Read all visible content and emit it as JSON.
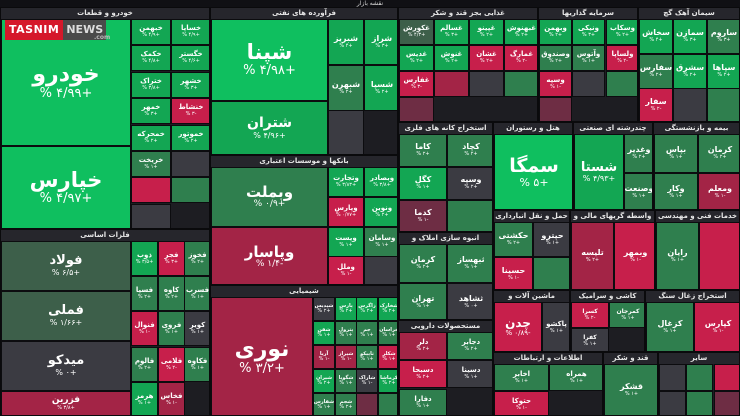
{
  "map_title": "نقشه بازار",
  "logo": {
    "brand": "TASNIM",
    "news": "NEWS",
    "domain": ".com"
  },
  "sectors": [
    {
      "id": "auto",
      "title": "خودرو و قطعات",
      "tiles": [
        {
          "n": "خودرو",
          "p": "+۴/۹۹ %",
          "c": "g1",
          "big": 3
        },
        {
          "n": "خپارس",
          "p": "+۴/۹۷ %",
          "c": "g1",
          "big": 2
        },
        {
          "n": "خبهمن",
          "p": "+۴/۹ %",
          "c": "g2"
        },
        {
          "n": "خساپا",
          "p": "+۴/۹ %",
          "c": "g2"
        },
        {
          "n": "خکمک",
          "p": "+۴/۸ %",
          "c": "g2"
        },
        {
          "n": "خگستر",
          "p": "+۴/۶ %",
          "c": "g2"
        },
        {
          "n": "ختراک",
          "p": "+۳/۸ %",
          "c": "g2"
        },
        {
          "n": "خشهر",
          "p": "+۳ %",
          "c": "g2"
        },
        {
          "n": "خمهر",
          "p": "+۳ %",
          "c": "g2"
        },
        {
          "n": "خنشاط",
          "p": "-۳ %",
          "c": "r1"
        },
        {
          "n": "خمحرکه",
          "p": "+۲ %",
          "c": "g2"
        },
        {
          "n": "خموتور",
          "p": "+۲ %",
          "c": "g2"
        },
        {
          "n": "خریخت",
          "p": "+۱ %",
          "c": "g3"
        },
        {
          "n": "",
          "p": "",
          "c": "nn"
        },
        {
          "n": "",
          "p": "",
          "c": "r1"
        },
        {
          "n": "",
          "p": "",
          "c": "g3"
        },
        {
          "n": "",
          "p": "",
          "c": "nn"
        }
      ]
    },
    {
      "id": "oil",
      "title": "فرآورده های نفتی",
      "tiles": [
        {
          "n": "شپنا",
          "p": "+۴/۹۸ %",
          "c": "g1",
          "big": 3
        },
        {
          "n": "شتران",
          "p": "+۴/۹۶ %",
          "c": "g2",
          "big": 2
        },
        {
          "n": "شبریز",
          "p": "+۴ %",
          "c": "g2"
        },
        {
          "n": "شراز",
          "p": "+۳ %",
          "c": "g2"
        },
        {
          "n": "شبهرن",
          "p": "+۲ %",
          "c": "g3"
        },
        {
          "n": "شسپا",
          "p": "+۲ %",
          "c": "g2"
        },
        {
          "n": "",
          "p": "",
          "c": "nn"
        }
      ]
    },
    {
      "id": "food",
      "title": "غذایی بجز قند و شکر",
      "tiles": [
        {
          "n": "غکورش",
          "p": "+۴/۳ %",
          "c": "g4"
        },
        {
          "n": "غسالم",
          "p": "+۳ %",
          "c": "g2"
        },
        {
          "n": "غپینو",
          "p": "+۲ %",
          "c": "g2"
        },
        {
          "n": "غبهنوش",
          "p": "+۲ %",
          "c": "g2"
        },
        {
          "n": "غدیس",
          "p": "+۲ %",
          "c": "g2"
        },
        {
          "n": "غنوش",
          "p": "+۲ %",
          "c": "g2"
        },
        {
          "n": "غشان",
          "p": "+۲ %",
          "c": "r1"
        },
        {
          "n": "غمارگ",
          "p": "-۲ %",
          "c": "r1"
        },
        {
          "n": "غفارس",
          "p": "-۳ %",
          "c": "r1"
        },
        {
          "n": "",
          "p": "",
          "c": "r2"
        },
        {
          "n": "",
          "p": "",
          "c": "nn"
        },
        {
          "n": "",
          "p": "",
          "c": "g3"
        },
        {
          "n": "",
          "p": "",
          "c": "r3"
        }
      ]
    },
    {
      "id": "invest",
      "title": "سرمایه گذاریها",
      "tiles": [
        {
          "n": "وبهمن",
          "p": "+۲ %",
          "c": "g2"
        },
        {
          "n": "ونیکی",
          "p": "+۳ %",
          "c": "g2"
        },
        {
          "n": "وسکاب",
          "p": "+۲ %",
          "c": "g2"
        },
        {
          "n": "وصندوق",
          "p": "+۲ %",
          "c": "g3"
        },
        {
          "n": "وآتوس",
          "p": "+۱ %",
          "c": "g3"
        },
        {
          "n": "ولساپا",
          "p": "-۲ %",
          "c": "r1"
        },
        {
          "n": "وسپه",
          "p": "-۱ %",
          "c": "r1"
        },
        {
          "n": "",
          "p": "",
          "c": "nn"
        },
        {
          "n": "",
          "p": "",
          "c": "g3"
        },
        {
          "n": "",
          "p": "",
          "c": "r3"
        }
      ]
    },
    {
      "id": "cement",
      "title": "سیمان آهک گچ",
      "tiles": [
        {
          "n": "سخاش",
          "p": "+۴ %",
          "c": "g2"
        },
        {
          "n": "سمازن",
          "p": "+۳ %",
          "c": "g2"
        },
        {
          "n": "ساروم",
          "p": "+۳ %",
          "c": "g3"
        },
        {
          "n": "سفارس",
          "p": "+۲ %",
          "c": "g3"
        },
        {
          "n": "سشرق",
          "p": "+۲ %",
          "c": "g2"
        },
        {
          "n": "سپاها",
          "p": "+۲ %",
          "c": "g2"
        },
        {
          "n": "سفار",
          "p": "-۲ %",
          "c": "r1"
        },
        {
          "n": "",
          "p": "",
          "c": "nn"
        },
        {
          "n": "",
          "p": "",
          "c": "g3"
        }
      ]
    },
    {
      "id": "banks",
      "title": "بانکها و موسسات اعتباری",
      "tiles": [
        {
          "n": "وبملت",
          "p": "+۰/۹ %",
          "c": "g3",
          "big": 2
        },
        {
          "n": "وتجارت",
          "p": "+۳/۸۳ %",
          "c": "g2"
        },
        {
          "n": "وبصادر",
          "p": "+۳/۸ %",
          "c": "g2"
        },
        {
          "n": "وپارس",
          "p": "+۰/۷۷ %",
          "c": "r1"
        },
        {
          "n": "ونوین",
          "p": "+۲ %",
          "c": "g2"
        },
        {
          "n": "وپاسار",
          "p": "-۱/۴ %",
          "c": "r2",
          "big": 2
        },
        {
          "n": "وپست",
          "p": "+۱ %",
          "c": "g2"
        },
        {
          "n": "وسامان",
          "p": "+۱ %",
          "c": "g3"
        },
        {
          "n": "وملل",
          "p": "-۱ %",
          "c": "r1"
        },
        {
          "n": "",
          "p": "",
          "c": "nn"
        }
      ]
    },
    {
      "id": "metals",
      "title": "فلزات اساسی",
      "tiles": [
        {
          "n": "فولاد",
          "p": "+۶/۵ %",
          "c": "g4",
          "big": 2
        },
        {
          "n": "فملی",
          "p": "+۱/۶۶ %",
          "c": "g4",
          "big": 2
        },
        {
          "n": "میدکو",
          "p": "+۰ %",
          "c": "nn",
          "big": 2
        },
        {
          "n": "فزرین",
          "p": "+۳/۸ %",
          "c": "r2",
          "big": 1
        },
        {
          "n": "ذوب",
          "p": "+۳/۵ %",
          "c": "g2"
        },
        {
          "n": "فجر",
          "p": "+۳ %",
          "c": "r1"
        },
        {
          "n": "فخوز",
          "p": "+۲ %",
          "c": "g3"
        },
        {
          "n": "فسپا",
          "p": "+۲ %",
          "c": "g3"
        },
        {
          "n": "کاوه",
          "p": "+۲ %",
          "c": "g3"
        },
        {
          "n": "فسرب",
          "p": "+۱ %",
          "c": "g3"
        },
        {
          "n": "فنوال",
          "p": "-۱ %",
          "c": "r1"
        },
        {
          "n": "فروی",
          "p": "+۱ %",
          "c": "g3"
        },
        {
          "n": "کویر",
          "p": "+۱ %",
          "c": "nn"
        },
        {
          "n": "فالوم",
          "p": "+۲ %",
          "c": "g3"
        },
        {
          "n": "فلامی",
          "p": "-۲ %",
          "c": "r1"
        },
        {
          "n": "فکاوه",
          "p": "+۱ %",
          "c": "g3"
        },
        {
          "n": "هرمز",
          "p": "+۱ %",
          "c": "g2"
        },
        {
          "n": "فخاس",
          "p": "-۱ %",
          "c": "r2"
        }
      ]
    },
    {
      "id": "chemicals",
      "title": "شیمیایی",
      "tiles": [
        {
          "n": "نوری",
          "p": "+۳/۲ %",
          "c": "r2",
          "big": 1
        },
        {
          "n": "شپدیس",
          "p": "+۲ %",
          "c": "nn"
        },
        {
          "n": "پارس",
          "p": "+۲ %",
          "c": "g2"
        },
        {
          "n": "زاگرس",
          "p": "+۲ %",
          "c": "g2"
        },
        {
          "n": "شخارک",
          "p": "+۲ %",
          "c": "g2"
        },
        {
          "n": "شفن",
          "p": "+۱ %",
          "c": "g2"
        },
        {
          "n": "پترول",
          "p": "+۱ %",
          "c": "g3"
        },
        {
          "n": "جم",
          "p": "+۱ %",
          "c": "g3"
        },
        {
          "n": "خراسان",
          "p": "+۱ %",
          "c": "g3"
        },
        {
          "n": "آریا",
          "p": "-۱ %",
          "c": "r2"
        },
        {
          "n": "شیراز",
          "p": "-۱ %",
          "c": "r2"
        },
        {
          "n": "تاپیکو",
          "p": "+۱ %",
          "c": "g3"
        },
        {
          "n": "شکلر",
          "p": "+۱ %",
          "c": "r1"
        },
        {
          "n": "شیران",
          "p": "+۲ %",
          "c": "g2"
        },
        {
          "n": "شگویا",
          "p": "+۱ %",
          "c": "g3"
        },
        {
          "n": "شاراک",
          "p": "-۱ %",
          "c": "nn"
        },
        {
          "n": "کرماشا",
          "p": "+۲ %",
          "c": "g2"
        },
        {
          "n": "شفارس",
          "p": "+۱ %",
          "c": "g3"
        },
        {
          "n": "شجم",
          "p": "+۲ %",
          "c": "g3"
        },
        {
          "n": "",
          "p": "",
          "c": "r3"
        },
        {
          "n": "",
          "p": "",
          "c": "g3"
        }
      ]
    },
    {
      "id": "extract",
      "title": "استخراج کانه های فلزی",
      "tiles": [
        {
          "n": "کاما",
          "p": "+۲ %",
          "c": "g3"
        },
        {
          "n": "کچاد",
          "p": "+۲ %",
          "c": "g3"
        },
        {
          "n": "کگل",
          "p": "+۱ %",
          "c": "g2"
        },
        {
          "n": "وسپه",
          "p": "+۲ %",
          "c": "nn"
        },
        {
          "n": "کدما",
          "p": "-۱ %",
          "c": "r3"
        },
        {
          "n": "",
          "p": "",
          "c": "g3"
        }
      ]
    },
    {
      "id": "transport",
      "title": "حمل و نقل انبارداری و ار",
      "tiles": [
        {
          "n": "حکشتی",
          "p": "+۲ %",
          "c": "g3"
        },
        {
          "n": "حپترو",
          "p": "+۱ %",
          "c": "nn"
        },
        {
          "n": "حسینا",
          "p": "-۱ %",
          "c": "r1"
        },
        {
          "n": "",
          "p": "",
          "c": "g3"
        }
      ]
    },
    {
      "id": "tourism",
      "title": "هتل و رستوران",
      "tiles": [
        {
          "n": "سمگا",
          "p": "+۵ %",
          "c": "g1",
          "big": 2
        }
      ]
    },
    {
      "id": "pharma",
      "title": "مستحصولات دارویی",
      "tiles": [
        {
          "n": "دلر",
          "p": "+۲ %",
          "c": "r2"
        },
        {
          "n": "دجابر",
          "p": "+۲ %",
          "c": "g3"
        },
        {
          "n": "دسبحا",
          "p": "+۲ %",
          "c": "r1"
        },
        {
          "n": "دسینا",
          "p": "+۱ %",
          "c": "nn"
        },
        {
          "n": "دفارا",
          "p": "+۱ %",
          "c": "g3"
        }
      ]
    },
    {
      "id": "holding",
      "title": "چندرشته ای صنعتی",
      "tiles": [
        {
          "n": "شستا",
          "p": "+۴/۹۳ %",
          "c": "g2",
          "big": 2
        },
        {
          "n": "وغدیر",
          "p": "+۲ %",
          "c": "g3"
        },
        {
          "n": "وصنعت",
          "p": "+۱ %",
          "c": "g3"
        }
      ]
    },
    {
      "id": "insurance",
      "title": "بیمه و بازنشستگی",
      "tiles": [
        {
          "n": "بپاس",
          "p": "+۱ %",
          "c": "g3"
        },
        {
          "n": "کرمان",
          "p": "+۲ %",
          "c": "g3"
        },
        {
          "n": "وکار",
          "p": "+۱ %",
          "c": "g3"
        },
        {
          "n": "ومعلم",
          "p": "-۱ %",
          "c": "r2"
        }
      ]
    },
    {
      "id": "realestate",
      "title": "انبوه سازی املاک و مستغلات",
      "tiles": [
        {
          "n": "کرمان",
          "p": "+۲ %",
          "c": "g3"
        },
        {
          "n": "ثبهساز",
          "p": "+۱ %",
          "c": "g3"
        },
        {
          "n": "تهران",
          "p": "+۱ %",
          "c": "g3"
        },
        {
          "n": "ثشاهد",
          "p": "+۰ %",
          "c": "nn"
        }
      ]
    },
    {
      "id": "finance",
      "title": "واسطه گریهای مالی و پولی",
      "tiles": [
        {
          "n": "تلیسه",
          "p": "+۲ %",
          "c": "r2"
        },
        {
          "n": "وبمهر",
          "p": "-۱ %",
          "c": "r1"
        }
      ]
    },
    {
      "id": "services",
      "title": "خدمات فنی و مهندسی",
      "tiles": [
        {
          "n": "رایان",
          "p": "+۱ %",
          "c": "g3"
        },
        {
          "n": "",
          "p": "",
          "c": "r1"
        }
      ]
    },
    {
      "id": "cable",
      "title": "ماشین آلات و تجهیزات",
      "tiles": [
        {
          "n": "چدن",
          "p": "-۰/۸۹ %",
          "c": "r1",
          "big": 2
        },
        {
          "n": "پاکشو",
          "p": "+۱ %",
          "c": "nn"
        }
      ]
    },
    {
      "id": "ceramic",
      "title": "کاشی و سرامیک",
      "tiles": [
        {
          "n": "کسرا",
          "p": "-۲ %",
          "c": "r1"
        },
        {
          "n": "کمرجان",
          "p": "+۱ %",
          "c": "g3"
        },
        {
          "n": "کفرا",
          "p": "+۱ %",
          "c": "nn"
        }
      ]
    },
    {
      "id": "mining",
      "title": "استخراج زغال سنگ",
      "tiles": [
        {
          "n": "کزغال",
          "p": "+۱ %",
          "c": "g3"
        },
        {
          "n": "کپارس",
          "p": "-۱ %",
          "c": "r1"
        }
      ]
    },
    {
      "id": "telecom",
      "title": "اطلاعات و ارتباطات",
      "tiles": [
        {
          "n": "اخابر",
          "p": "+۱ %",
          "c": "g3"
        },
        {
          "n": "همراه",
          "p": "+۱ %",
          "c": "g3"
        },
        {
          "n": "حتوکا",
          "p": "-۱ %",
          "c": "r1"
        }
      ]
    },
    {
      "id": "sugar",
      "title": "قند و شکر",
      "tiles": [
        {
          "n": "قشکر",
          "p": "+۱ %",
          "c": "g3"
        }
      ]
    },
    {
      "id": "others",
      "title": "سایر",
      "tiles": [
        {
          "n": "",
          "p": "",
          "c": "nn"
        },
        {
          "n": "",
          "p": "",
          "c": "g3"
        },
        {
          "n": "",
          "p": "",
          "c": "r1"
        },
        {
          "n": "",
          "p": "",
          "c": "nn"
        },
        {
          "n": "",
          "p": "",
          "c": "g3"
        },
        {
          "n": "",
          "p": "",
          "c": "r3"
        }
      ]
    }
  ]
}
